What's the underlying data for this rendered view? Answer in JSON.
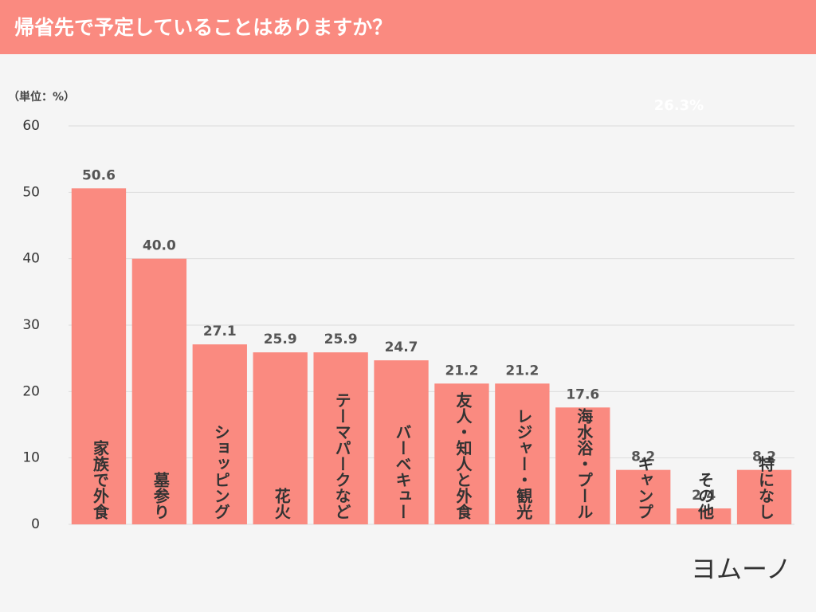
{
  "chart_data": {
    "type": "bar",
    "title": "帰省先で予定していることはありますか？",
    "unit_label": "（単位：%）",
    "annotation": "26.3%",
    "logo": "ヨムーノ",
    "categories": [
      "家族で外食",
      "墓参り",
      "ショッピング",
      "花火",
      "テーマパークなど",
      "バーベキュー",
      "友人・知人と外食",
      "レジャー・観光",
      "海水浴・プール",
      "キャンプ",
      "その他",
      "特になし"
    ],
    "values": [
      50.6,
      40.0,
      27.1,
      25.9,
      25.9,
      24.7,
      21.2,
      21.2,
      17.6,
      8.2,
      2.4,
      8.2
    ],
    "value_labels": [
      "50.6",
      "40.0",
      "27.1",
      "25.9",
      "25.9",
      "24.7",
      "21.2",
      "21.2",
      "17.6",
      "8.2",
      "2.4",
      "8.2"
    ],
    "color": "#fa8a80",
    "ylim": [
      0,
      60
    ],
    "yticks": [
      0,
      10,
      20,
      30,
      40,
      50,
      60
    ],
    "grid": true
  }
}
